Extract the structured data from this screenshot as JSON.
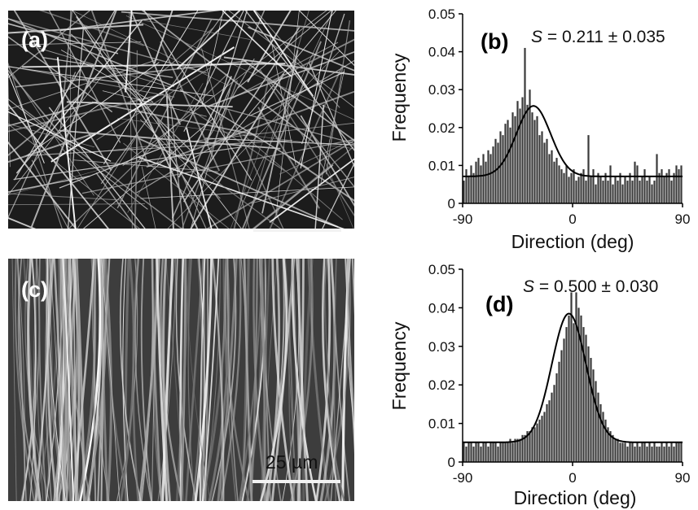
{
  "micrographs": [
    {
      "id": "a",
      "label": "(a)",
      "fiber_orientation": "random",
      "scale_bar_text": ""
    },
    {
      "id": "c",
      "label": "(c)",
      "fiber_orientation": "aligned vertical",
      "scale_bar_text": "25 µm"
    }
  ],
  "chart_data": [
    {
      "id": "b",
      "type": "bar",
      "panel_label": "(b)",
      "title": "",
      "xlabel": "Direction (deg)",
      "ylabel": "Frequency",
      "stat_symbol": "S",
      "stat_text": " = 0.211 ± 0.035",
      "xlim": [
        -90,
        90
      ],
      "ylim": [
        0,
        0.05
      ],
      "xticks": [
        "-90",
        "0",
        "90"
      ],
      "yticks": [
        "0",
        "0.01",
        "0.02",
        "0.03",
        "0.04",
        "0.05"
      ],
      "bin_width_deg": 2,
      "histogram": {
        "x_start": -89,
        "values": [
          0.006,
          0.009,
          0.007,
          0.01,
          0.008,
          0.011,
          0.012,
          0.01,
          0.013,
          0.011,
          0.014,
          0.013,
          0.015,
          0.017,
          0.016,
          0.019,
          0.018,
          0.021,
          0.022,
          0.02,
          0.024,
          0.023,
          0.027,
          0.025,
          0.028,
          0.041,
          0.026,
          0.03,
          0.024,
          0.022,
          0.023,
          0.018,
          0.019,
          0.016,
          0.017,
          0.013,
          0.014,
          0.011,
          0.012,
          0.01,
          0.009,
          0.008,
          0.01,
          0.007,
          0.008,
          0.009,
          0.006,
          0.007,
          0.008,
          0.009,
          0.006,
          0.018,
          0.007,
          0.009,
          0.005,
          0.008,
          0.007,
          0.006,
          0.008,
          0.006,
          0.01,
          0.005,
          0.007,
          0.006,
          0.008,
          0.005,
          0.007,
          0.006,
          0.008,
          0.006,
          0.011,
          0.01,
          0.006,
          0.007,
          0.009,
          0.006,
          0.007,
          0.005,
          0.006,
          0.013,
          0.008,
          0.009,
          0.007,
          0.008,
          0.009,
          0.006,
          0.008,
          0.01,
          0.009,
          0.01
        ]
      },
      "fit": {
        "model": "gaussian",
        "baseline": 0.0071,
        "peak_center_deg": -32,
        "peak_height": 0.0186,
        "sigma_deg": 14
      }
    },
    {
      "id": "d",
      "type": "bar",
      "panel_label": "(d)",
      "title": "",
      "xlabel": "Direction (deg)",
      "ylabel": "Frequency",
      "stat_symbol": "S",
      "stat_text": " = 0.500 ± 0.030",
      "xlim": [
        -90,
        90
      ],
      "ylim": [
        0,
        0.05
      ],
      "xticks": [
        "-90",
        "0",
        "90"
      ],
      "yticks": [
        "0",
        "0.01",
        "0.02",
        "0.03",
        "0.04",
        "0.05"
      ],
      "bin_width_deg": 2,
      "histogram": {
        "x_start": -89,
        "values": [
          0.005,
          0.004,
          0.005,
          0.005,
          0.004,
          0.005,
          0.005,
          0.004,
          0.005,
          0.005,
          0.004,
          0.005,
          0.005,
          0.005,
          0.004,
          0.005,
          0.005,
          0.005,
          0.005,
          0.006,
          0.005,
          0.006,
          0.006,
          0.006,
          0.007,
          0.007,
          0.008,
          0.008,
          0.009,
          0.009,
          0.01,
          0.011,
          0.012,
          0.013,
          0.015,
          0.016,
          0.018,
          0.02,
          0.023,
          0.026,
          0.029,
          0.032,
          0.035,
          0.038,
          0.044,
          0.036,
          0.044,
          0.04,
          0.038,
          0.035,
          0.033,
          0.03,
          0.027,
          0.024,
          0.021,
          0.018,
          0.015,
          0.013,
          0.011,
          0.009,
          0.008,
          0.007,
          0.006,
          0.006,
          0.005,
          0.005,
          0.005,
          0.004,
          0.005,
          0.005,
          0.004,
          0.005,
          0.004,
          0.005,
          0.005,
          0.004,
          0.005,
          0.004,
          0.005,
          0.004,
          0.004,
          0.005,
          0.004,
          0.005,
          0.004,
          0.005,
          0.004,
          0.005,
          0.005,
          0.005
        ]
      },
      "fit": {
        "model": "gaussian",
        "baseline": 0.0051,
        "peak_center_deg": -3,
        "peak_height": 0.0334,
        "sigma_deg": 14
      }
    }
  ]
}
